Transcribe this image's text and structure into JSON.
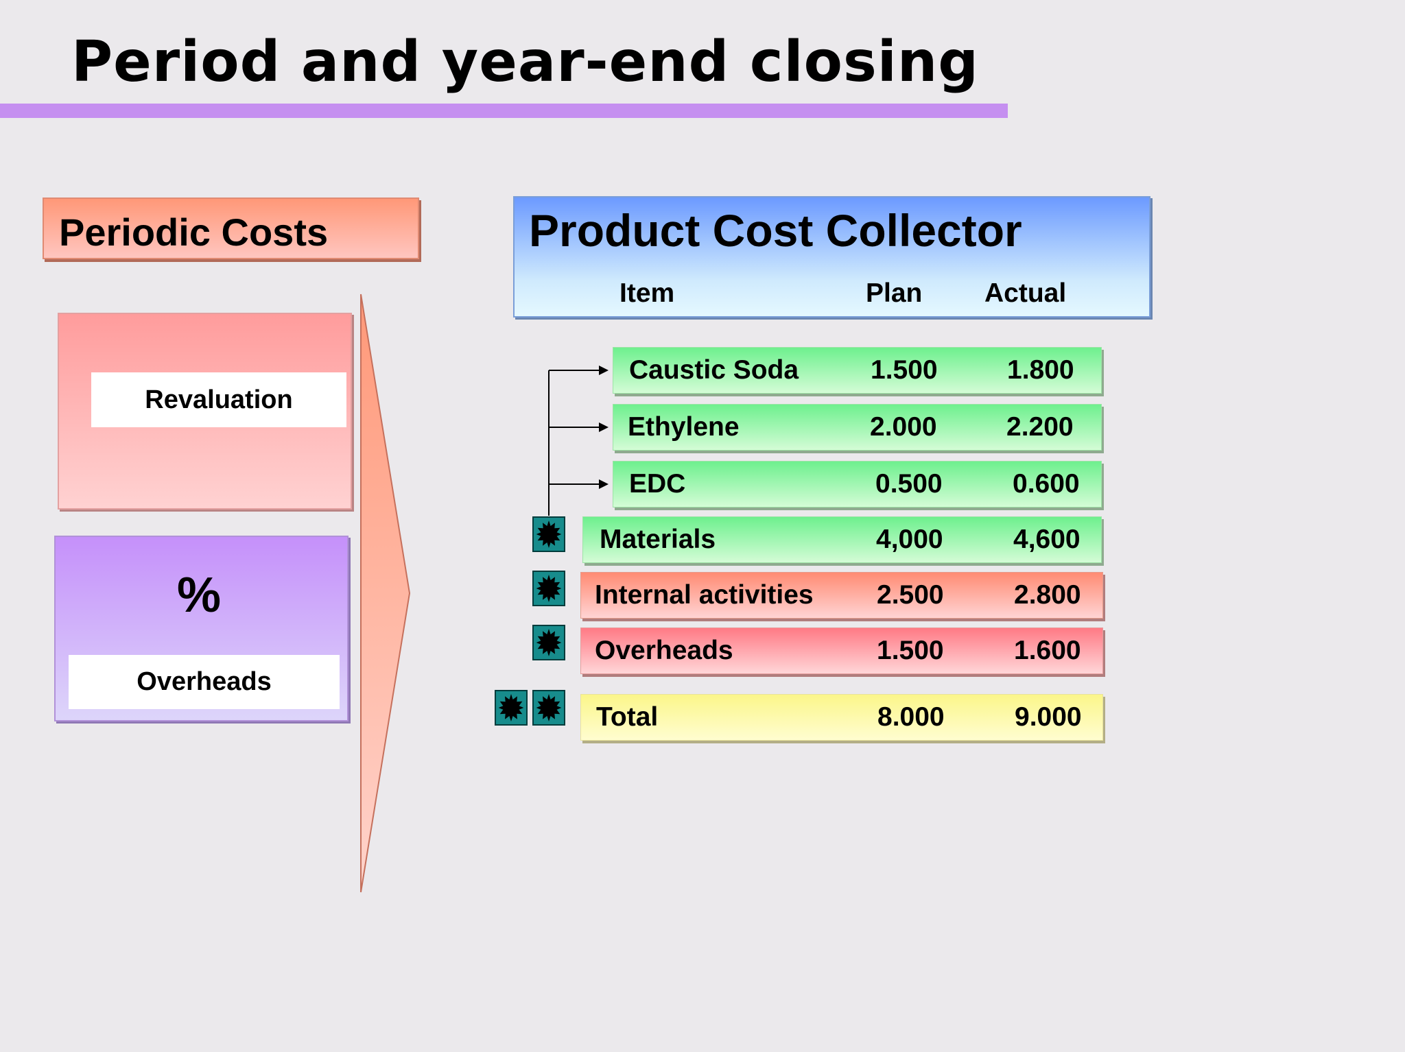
{
  "title": "Period and year-end closing",
  "periodic_costs": {
    "heading": "Periodic Costs",
    "revaluation_label": "Revaluation",
    "percent_symbol": "%",
    "overheads_label": "Overheads"
  },
  "collector": {
    "title": "Product Cost Collector",
    "columns": {
      "item": "Item",
      "plan": "Plan",
      "actual": "Actual"
    },
    "rows": [
      {
        "item": "Caustic Soda",
        "plan": "1.500",
        "actual": "1.800"
      },
      {
        "item": "Ethylene",
        "plan": "2.000",
        "actual": "2.200"
      },
      {
        "item": "EDC",
        "plan": "0.500",
        "actual": "0.600"
      },
      {
        "item": "Materials",
        "plan": "4,000",
        "actual": "4,600"
      },
      {
        "item": "Internal activities",
        "plan": "2.500",
        "actual": "2.800"
      },
      {
        "item": "Overheads",
        "plan": "1.500",
        "actual": "1.600"
      },
      {
        "item": "Total",
        "plan": "8.000",
        "actual": "9.000"
      }
    ]
  },
  "colors": {
    "accent_rule": "#c58ff0",
    "materials_green": "#6ef08e",
    "internal_red": "#ff8b73",
    "overheads_red": "#ff7a85",
    "total_yellow": "#fbf68a",
    "badge_teal": "#178c8c"
  },
  "icons": {
    "badge": "starburst-icon",
    "flow": "arrow-right-icon"
  }
}
